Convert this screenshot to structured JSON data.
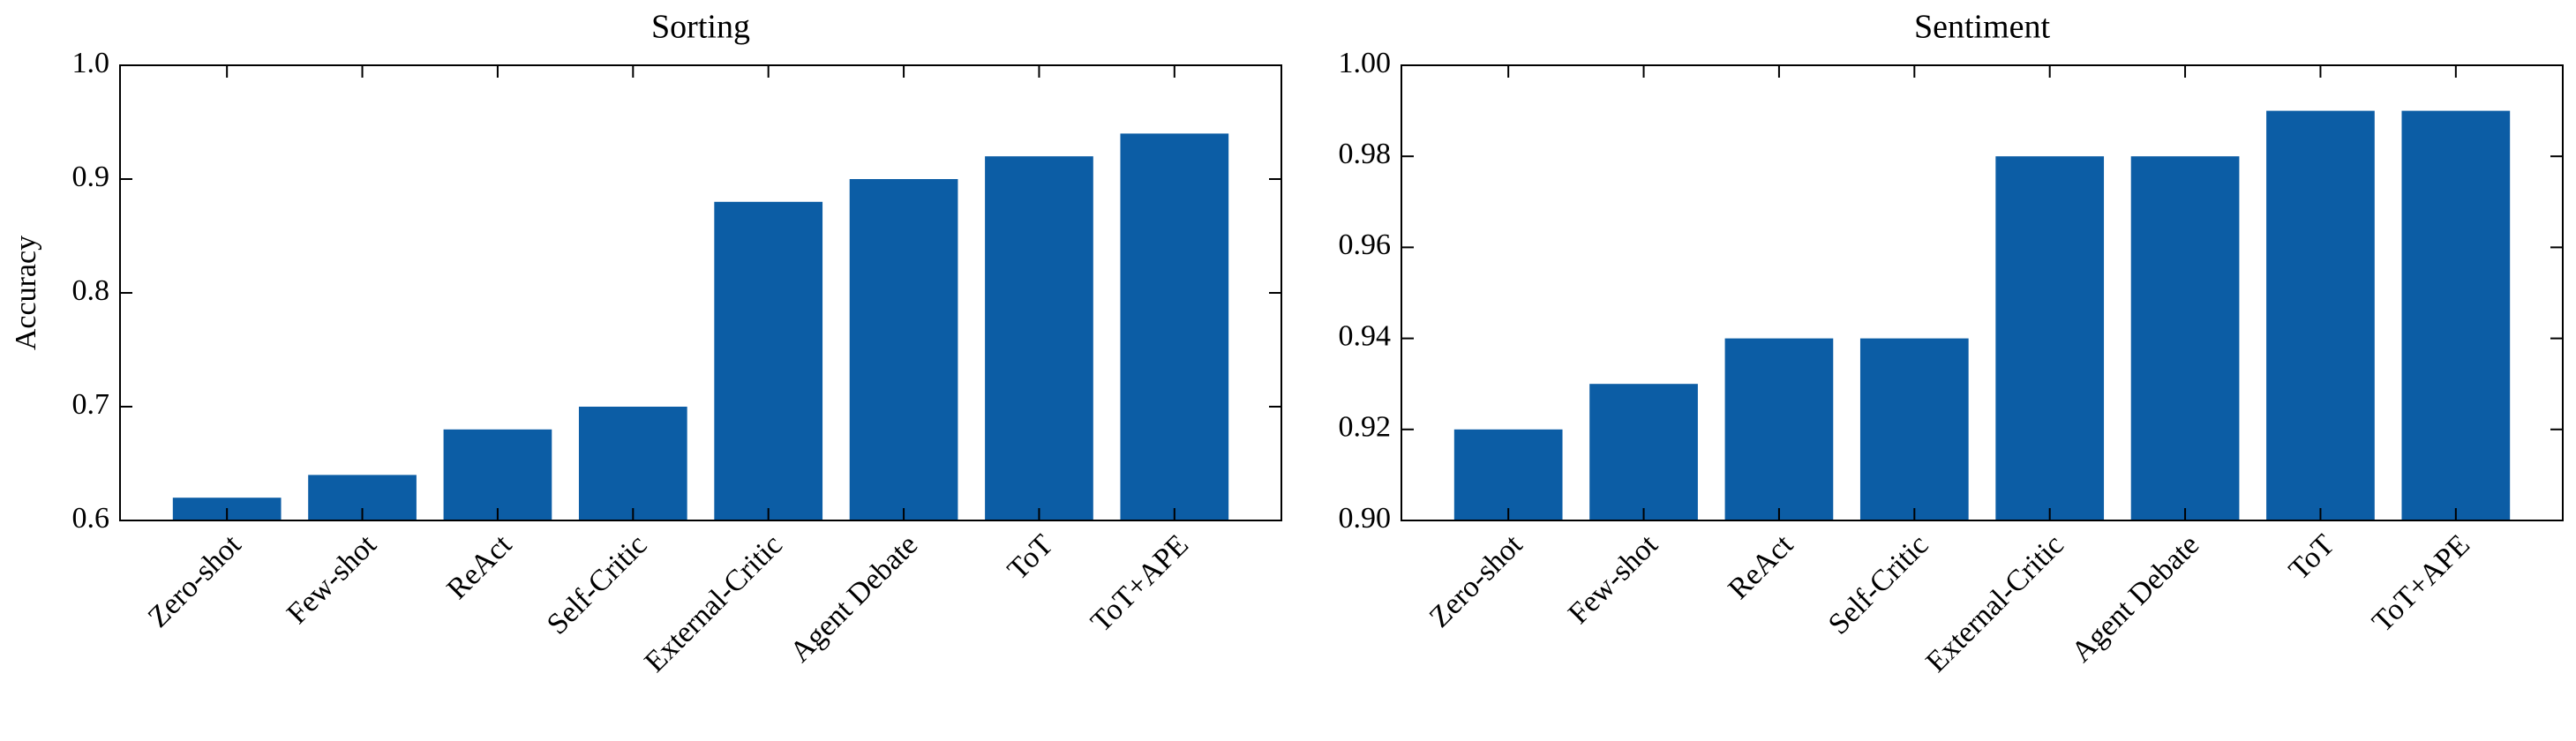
{
  "chart_data": [
    {
      "type": "bar",
      "title": "Sorting",
      "y_label": "Accuracy",
      "categories": [
        "Zero-shot",
        "Few-shot",
        "ReAct",
        "Self-Critic",
        "External-Critic",
        "Agent Debate",
        "ToT",
        "ToT+APE"
      ],
      "values": [
        0.62,
        0.64,
        0.68,
        0.7,
        0.88,
        0.9,
        0.92,
        0.94
      ],
      "color": "#0c5da5",
      "ylim": [
        0.6,
        1.0
      ],
      "yticks": [
        0.6,
        0.7,
        0.8,
        0.9,
        {
          "value": 1,
          "label": "1.0"
        }
      ]
    },
    {
      "type": "bar",
      "title": "Sentiment",
      "categories": [
        "Zero-shot",
        "Few-shot",
        "ReAct",
        "Self-Critic",
        "External-Critic",
        "Agent Debate",
        "ToT",
        "ToT+APE"
      ],
      "values": [
        0.92,
        0.93,
        0.94,
        0.94,
        0.98,
        0.98,
        0.99,
        0.99
      ],
      "color": "#0c5da5",
      "ylim": [
        0.9,
        1.0
      ],
      "yticks": [
        {
          "value": 0.9,
          "label": "0.90"
        },
        {
          "value": 0.92,
          "label": "0.92"
        },
        {
          "value": 0.94,
          "label": "0.94"
        },
        {
          "value": 0.96,
          "label": "0.96"
        },
        {
          "value": 0.98,
          "label": "0.98"
        },
        {
          "value": 1,
          "label": "1.00"
        }
      ]
    }
  ]
}
